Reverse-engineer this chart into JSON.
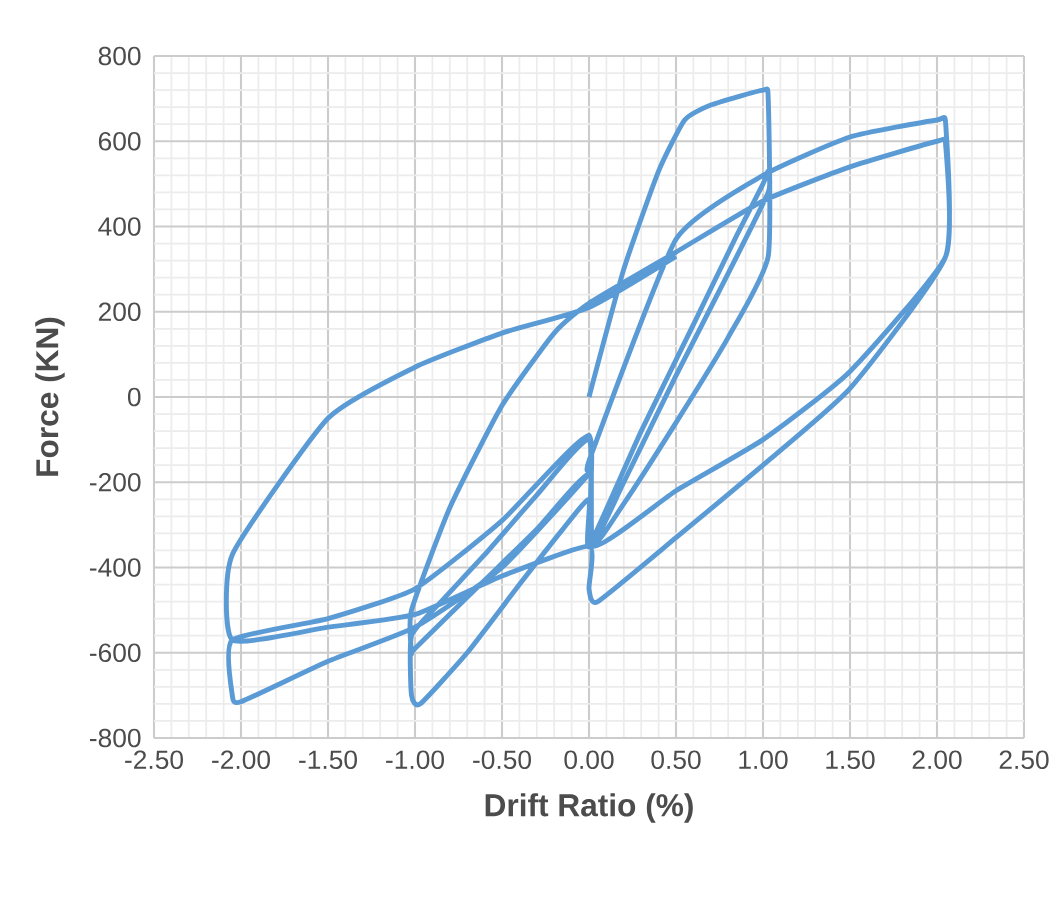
{
  "chart_data": {
    "type": "line",
    "xlabel": "Drift Ratio (%)",
    "ylabel": "Force (KN)",
    "xlim": [
      -2.5,
      2.5
    ],
    "ylim": [
      -800,
      800
    ],
    "xticks": [
      {
        "value": -2.5,
        "label": "-2.50"
      },
      {
        "value": -2,
        "label": "-2.00"
      },
      {
        "value": -1.5,
        "label": "-1.50"
      },
      {
        "value": -1,
        "label": "-1.00"
      },
      {
        "value": -0.5,
        "label": "-0.50"
      },
      {
        "value": 0,
        "label": "0.00"
      },
      {
        "value": 0.5,
        "label": "0.50"
      },
      {
        "value": 1,
        "label": "1.00"
      },
      {
        "value": 1.5,
        "label": "1.50"
      },
      {
        "value": 2,
        "label": "2.00"
      },
      {
        "value": 2.5,
        "label": "2.50"
      }
    ],
    "yticks": [
      -800,
      -600,
      -400,
      -200,
      0,
      200,
      400,
      600,
      800
    ],
    "grid": true,
    "marker": "none",
    "line_style": "solid",
    "series": [
      {
        "color": "#5b9bd5",
        "x": [
          0,
          0.2,
          0.4,
          0.55,
          0.7,
          1.0,
          1.03,
          1.03,
          0.8,
          0.5,
          0.2,
          0.02,
          0,
          -0.3,
          -0.6,
          -0.85,
          -1.02,
          -1.02,
          -0.97,
          -0.7,
          -0.4,
          -0.15,
          0,
          0,
          0.3,
          0.6,
          0.85,
          1.0,
          1.03,
          1.03,
          0.8,
          0.5,
          0.2,
          0.02,
          0,
          -0.3,
          -0.6,
          -1.0,
          -1.02,
          -1.02,
          -0.8,
          -0.5,
          -0.2,
          0,
          0.5,
          1.0,
          1.5,
          2.0,
          2.05,
          2.05,
          1.5,
          1.0,
          0.5,
          0.02,
          0,
          -0.5,
          -1.0,
          -1.5,
          -2.05,
          -2.05,
          -2.0,
          -1.5,
          -1.0,
          -0.5,
          0,
          0,
          0.5,
          1.0,
          1.5,
          2.0,
          2.05,
          2.05,
          1.5,
          1.0,
          0.5,
          0.05,
          0,
          0,
          -0.5,
          -1.0,
          -1.5,
          -2.05,
          -2.05,
          -1.5,
          -1.0,
          -0.5,
          0,
          0.5
        ],
        "values": [
          0,
          300,
          530,
          650,
          685,
          720,
          700,
          330,
          140,
          -60,
          -250,
          -345,
          -100,
          -230,
          -370,
          -480,
          -560,
          -700,
          -720,
          -600,
          -440,
          -310,
          -240,
          -350,
          -80,
          170,
          380,
          500,
          530,
          480,
          290,
          50,
          -200,
          -345,
          -180,
          -310,
          -430,
          -590,
          -600,
          -500,
          -260,
          -20,
          150,
          220,
          340,
          460,
          540,
          600,
          590,
          330,
          60,
          -100,
          -220,
          -350,
          -90,
          -290,
          -450,
          -520,
          -570,
          -700,
          -715,
          -620,
          -540,
          -400,
          -180,
          -150,
          370,
          520,
          610,
          650,
          640,
          330,
          20,
          -160,
          -330,
          -480,
          -450,
          -350,
          -420,
          -510,
          -540,
          -570,
          -370,
          -50,
          70,
          150,
          210,
          330
        ]
      }
    ]
  }
}
